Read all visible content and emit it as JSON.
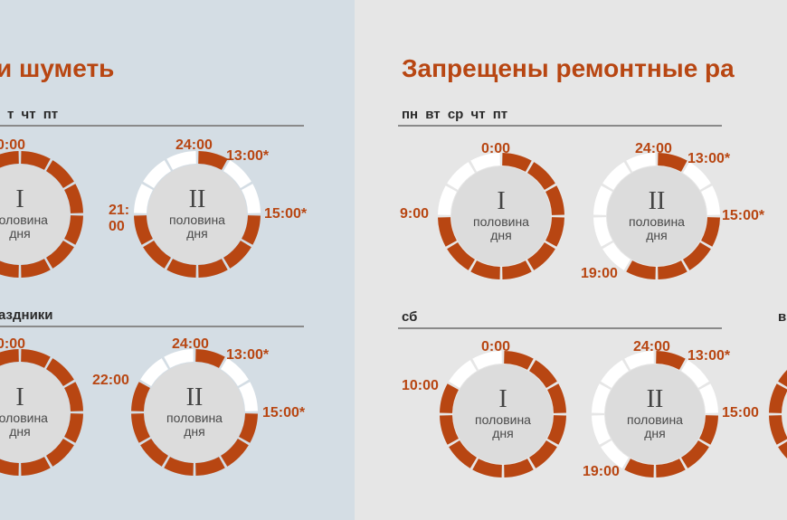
{
  "colors": {
    "accent": "#b84612",
    "left_bg": "#d4dde4",
    "right_bg": "#e6e6e6",
    "ring_empty": "#ffffff"
  },
  "left": {
    "title": "и шуметь",
    "weekdays_label": "т  чт  пт",
    "holidays_label": "аздники"
  },
  "right": {
    "title": "Запрещены ремонтные ра",
    "weekdays_label": "пн  вт  ср  чт  пт",
    "saturday_label": "сб",
    "sunday_label": "в"
  },
  "half_labels": {
    "first_numeral": "I",
    "second_numeral": "II",
    "line1": "половина",
    "line2": "дня"
  },
  "dials": [
    {
      "id": "L1a",
      "half": "first",
      "banned_hours": [
        [
          0,
          12
        ]
      ],
      "labels": [
        "0:00"
      ]
    },
    {
      "id": "L1b",
      "half": "second",
      "banned_hours": [
        [
          12,
          13
        ],
        [
          15,
          21
        ]
      ],
      "labels": [
        "24:00",
        "13:00*",
        "15:00*",
        "21:\n00"
      ]
    },
    {
      "id": "L2a",
      "half": "first",
      "banned_hours": [
        [
          0,
          12
        ]
      ],
      "labels": [
        "0:00"
      ]
    },
    {
      "id": "L2b",
      "half": "second",
      "banned_hours": [
        [
          12,
          13
        ],
        [
          15,
          22
        ]
      ],
      "labels": [
        "24:00",
        "13:00*",
        "15:00*",
        "22:00"
      ]
    },
    {
      "id": "R1a",
      "half": "first",
      "banned_hours": [
        [
          0,
          9
        ]
      ],
      "labels": [
        "0:00",
        "9:00"
      ]
    },
    {
      "id": "R1b",
      "half": "second",
      "banned_hours": [
        [
          12,
          13
        ],
        [
          15,
          19
        ]
      ],
      "labels": [
        "24:00",
        "13:00*",
        "15:00*",
        "19:00"
      ]
    },
    {
      "id": "R2a",
      "half": "first",
      "banned_hours": [
        [
          0,
          10
        ]
      ],
      "labels": [
        "0:00",
        "10:00"
      ]
    },
    {
      "id": "R2b",
      "half": "second",
      "banned_hours": [
        [
          12,
          13
        ],
        [
          15,
          19
        ]
      ],
      "labels": [
        "24:00",
        "13:00*",
        "15:00",
        "19:00"
      ]
    }
  ]
}
